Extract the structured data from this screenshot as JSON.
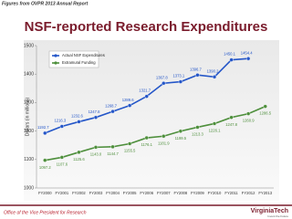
{
  "header": "Figures from OVPR 2013 Annual Report",
  "footer": {
    "office": "Office of the Vice President for Research",
    "logo": "VirginiaTech",
    "tagline": "Invent the Future"
  },
  "chart_data": {
    "type": "line",
    "title": "NSF-reported Research Expenditures",
    "y_label": "Dollars (in millions)",
    "categories": [
      "FY2000",
      "FY2001",
      "FY2002",
      "FY2003",
      "FY2004",
      "FY2005",
      "FY2006",
      "FY2007",
      "FY2008",
      "FY2009",
      "FY2010",
      "FY2011",
      "FY2012",
      "FY2013"
    ],
    "series": [
      {
        "name": "Actual NSF Expenditures",
        "color": "#2456c8",
        "values": [
          1192.7,
          1216.3,
          1232.6,
          1247.8,
          1268.7,
          1289.6,
          1321.7,
          1367.8,
          1373.1,
          1396.7,
          1390.2,
          1450.1,
          1454.4,
          null
        ],
        "value_labels": [
          "1192.7",
          "1216.3",
          "1232.6",
          "1247.8",
          "1268.7",
          "1289.6",
          "1321.7",
          "1367.8",
          "1373.1",
          "1396.7",
          "1390.2",
          "1450.1",
          "1454.4",
          null
        ]
      },
      {
        "name": "Extramural Funding",
        "color": "#4e8f3c",
        "values": [
          1097.2,
          1107.6,
          1125.6,
          1143.0,
          1144.7,
          1155.5,
          1176.1,
          1181.9,
          1199.5,
          1213.3,
          1226.1,
          1247.8,
          1260.9,
          1286.5
        ],
        "value_labels": [
          "1097.2",
          "1107.6",
          "1125.6",
          "1143.0",
          "1144.7",
          "1155.5",
          "1176.1",
          "1181.9",
          "1199.5",
          "1213.3",
          "1226.1",
          "1247.8",
          "1260.9",
          "1286.5"
        ]
      }
    ],
    "ylim": [
      1000,
      1500
    ],
    "yticks": [
      1000,
      1100,
      1200,
      1300,
      1400,
      1500
    ],
    "grid": false,
    "legend": "upper-left"
  }
}
